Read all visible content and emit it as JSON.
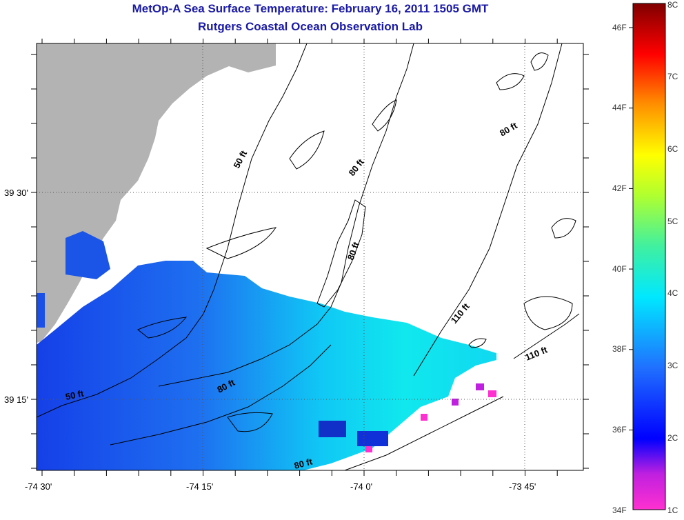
{
  "header": {
    "title": "MetOp-A Sea Surface Temperature:  February 16, 2011 1505 GMT",
    "subtitle": "Rutgers Coastal Ocean Observation Lab"
  },
  "map": {
    "land_color": "#b3b3b3",
    "x_ticks": [
      "-74 30'",
      "-74 15'",
      "-74 0'",
      "-73 45'"
    ],
    "y_ticks": [
      "39 30'",
      "39 15'"
    ],
    "contour_labels": [
      "50 ft",
      "80 ft",
      "80 ft",
      "80 ft",
      "110 ft",
      "110 ft",
      "50 ft",
      "80 ft",
      "80 ft"
    ]
  },
  "colorbar": {
    "celsius": [
      "8C",
      "7C",
      "6C",
      "5C",
      "4C",
      "3C",
      "2C",
      "1C"
    ],
    "fahrenheit": [
      "46F",
      "44F",
      "42F",
      "40F",
      "38F",
      "36F",
      "34F"
    ]
  }
}
